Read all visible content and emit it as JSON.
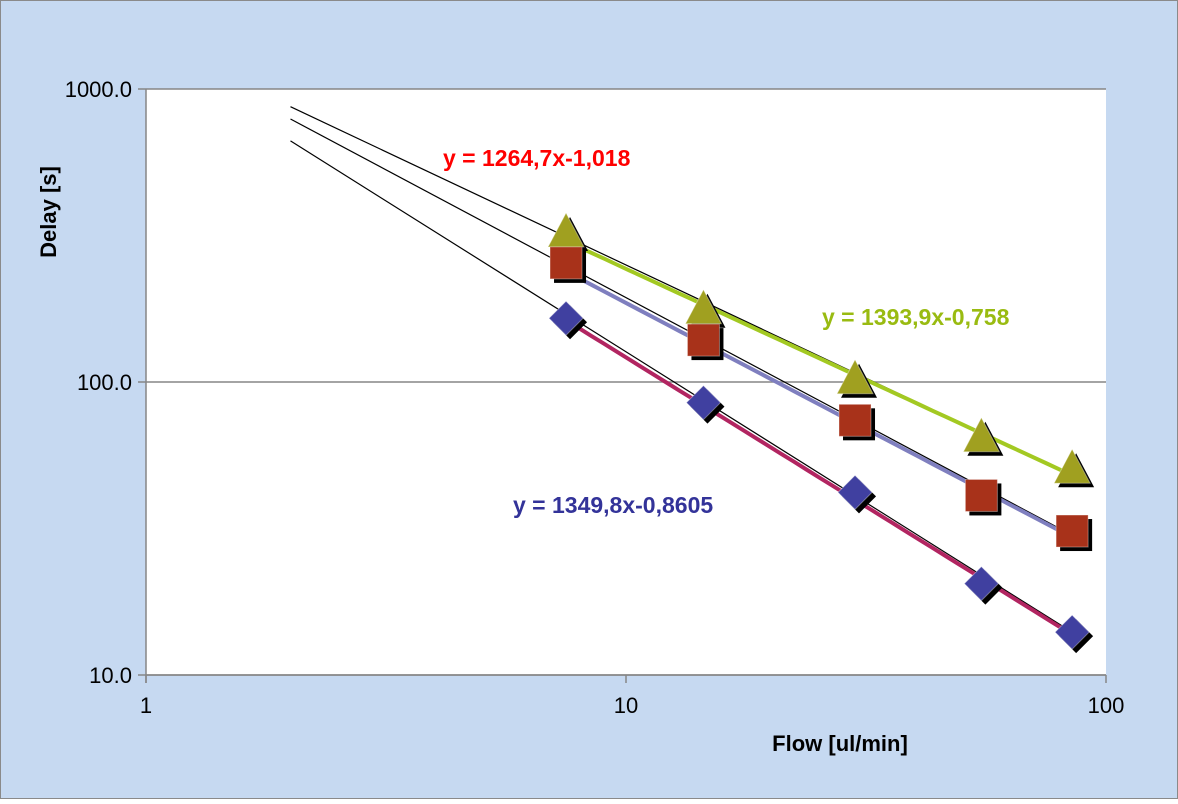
{
  "chart_data": {
    "type": "scatter",
    "title": "",
    "xlabel": "Flow [ul/min]",
    "ylabel": "Delay [s]",
    "x_scale": "log",
    "y_scale": "log",
    "xlim": [
      1,
      100
    ],
    "ylim": [
      10,
      1000
    ],
    "x_ticks": [
      "1",
      "10",
      "100"
    ],
    "y_ticks": [
      "10.0",
      "100.0",
      "1000.0"
    ],
    "grid": "horizontal major gridlines",
    "legend": "none",
    "colors": {
      "background": "#c6d9f1",
      "plot_area": "#ffffff",
      "blue": "#4040a0",
      "red": "#a8321a",
      "green": "#a0a020",
      "blue_trend": "#7f7fbf",
      "red_trend": "#b22561",
      "green_trend": "#a3c922"
    },
    "series": [
      {
        "marker": "triangle",
        "color": "#a0a020",
        "x": [
          7.5,
          14.5,
          30,
          55,
          85
        ],
        "y": [
          320,
          175,
          101,
          64,
          50
        ]
      },
      {
        "marker": "square",
        "color": "#a8321a",
        "x": [
          7.5,
          14.5,
          30,
          55,
          85
        ],
        "y": [
          255,
          139,
          74,
          41,
          31
        ]
      },
      {
        "marker": "diamond",
        "color": "#4040a0",
        "x": [
          7.5,
          14.5,
          30,
          55,
          85
        ],
        "y": [
          165,
          85,
          42,
          20.5,
          14
        ]
      }
    ],
    "trendlines": [
      {
        "color": "#a3c922",
        "x_range": [
          7.5,
          85
        ],
        "a": 1393.9,
        "b": -0.758
      },
      {
        "color": "#b22561",
        "x_range": [
          7.5,
          85
        ],
        "a": 1264.7,
        "b": -1.018
      },
      {
        "color": "#7f7fbf",
        "x_range": [
          7.5,
          85
        ],
        "a": 1349.8,
        "b": -0.8605
      }
    ],
    "fit_lines": [
      {
        "x": [
          2,
          85
        ],
        "y": [
          870,
          48
        ]
      },
      {
        "x": [
          2,
          85
        ],
        "y": [
          790,
          30
        ]
      },
      {
        "x": [
          2,
          85
        ],
        "y": [
          665,
          14
        ]
      }
    ],
    "annotations": [
      {
        "text": "y = 1264,7x-1,018",
        "color": "#ff0000"
      },
      {
        "text": "y = 1393,9x-0,758",
        "color": "#99bb11"
      },
      {
        "text": "y = 1349,8x-0,8605",
        "color": "#333399"
      }
    ]
  }
}
